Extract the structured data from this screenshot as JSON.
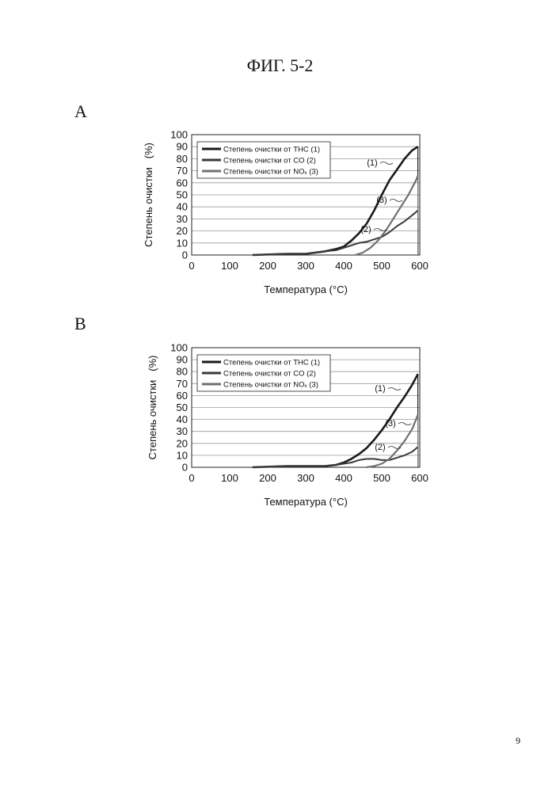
{
  "figure_title": "ФИГ. 5-2",
  "page_number": "9",
  "chart_data": [
    {
      "panel_label": "A",
      "type": "line",
      "xlabel": "Температура (°C)",
      "ylabel": "Степень очистки   (%)",
      "xlim": [
        0,
        600
      ],
      "ylim": [
        0,
        100
      ],
      "xticks": [
        "0",
        "100",
        "200",
        "300",
        "400",
        "500",
        "600"
      ],
      "yticks": [
        "0",
        "10",
        "20",
        "30",
        "40",
        "50",
        "60",
        "70",
        "80",
        "90",
        "100"
      ],
      "grid": "horizontal",
      "legend_position": "top-left",
      "series": [
        {
          "name": "Степень очистки от THC (1)",
          "marker": "(1)",
          "color": "#1a1a1a",
          "x": [
            160,
            250,
            300,
            350,
            380,
            400,
            420,
            440,
            460,
            480,
            500,
            520,
            540,
            560,
            580,
            595
          ],
          "y": [
            0,
            1,
            1,
            3,
            5,
            7,
            12,
            18,
            26,
            37,
            50,
            62,
            71,
            80,
            87,
            90
          ]
        },
        {
          "name": "Степень очистки от CO (2)",
          "marker": "(2)",
          "color": "#3a3a3a",
          "x": [
            160,
            250,
            300,
            350,
            380,
            400,
            420,
            440,
            460,
            480,
            500,
            520,
            540,
            560,
            580,
            595
          ],
          "y": [
            0,
            1,
            1,
            3,
            4,
            6,
            8,
            10,
            11,
            13,
            15,
            19,
            24,
            28,
            33,
            37
          ]
        },
        {
          "name": "Степень очистки от NOₓ (3)",
          "marker": "(3)",
          "color": "#707070",
          "x": [
            430,
            450,
            470,
            490,
            510,
            530,
            550,
            570,
            590,
            595
          ],
          "y": [
            0,
            2,
            6,
            12,
            20,
            30,
            40,
            50,
            62,
            66
          ]
        }
      ],
      "annotations": [
        "(1)",
        "(3)",
        "(2)"
      ]
    },
    {
      "panel_label": "B",
      "type": "line",
      "xlabel": "Температура (°C)",
      "ylabel": "Степень очистки   (%)",
      "xlim": [
        0,
        600
      ],
      "ylim": [
        0,
        100
      ],
      "xticks": [
        "0",
        "100",
        "200",
        "300",
        "400",
        "500",
        "600"
      ],
      "yticks": [
        "0",
        "10",
        "20",
        "30",
        "40",
        "50",
        "60",
        "70",
        "80",
        "90",
        "100"
      ],
      "grid": "horizontal",
      "legend_position": "top-left",
      "series": [
        {
          "name": "Степень очистки от THC (1)",
          "marker": "(1)",
          "color": "#1a1a1a",
          "x": [
            160,
            250,
            300,
            350,
            380,
            400,
            420,
            440,
            460,
            480,
            500,
            520,
            540,
            560,
            580,
            595
          ],
          "y": [
            0,
            1,
            1,
            1,
            2,
            4,
            7,
            11,
            16,
            23,
            31,
            40,
            50,
            59,
            69,
            78
          ]
        },
        {
          "name": "Степень очистки от CO (2)",
          "marker": "(2)",
          "color": "#3a3a3a",
          "x": [
            160,
            250,
            300,
            350,
            380,
            400,
            420,
            440,
            460,
            480,
            500,
            520,
            540,
            560,
            580,
            595
          ],
          "y": [
            0,
            1,
            1,
            1,
            2,
            3,
            4,
            6,
            7,
            7,
            6,
            6,
            8,
            10,
            13,
            17
          ]
        },
        {
          "name": "Степень очистки от NOₓ (3)",
          "marker": "(3)",
          "color": "#707070",
          "x": [
            460,
            480,
            500,
            520,
            540,
            560,
            580,
            595
          ],
          "y": [
            0,
            1,
            3,
            7,
            14,
            22,
            32,
            44
          ]
        }
      ],
      "annotations": [
        "(1)",
        "(3)",
        "(2)"
      ]
    }
  ]
}
